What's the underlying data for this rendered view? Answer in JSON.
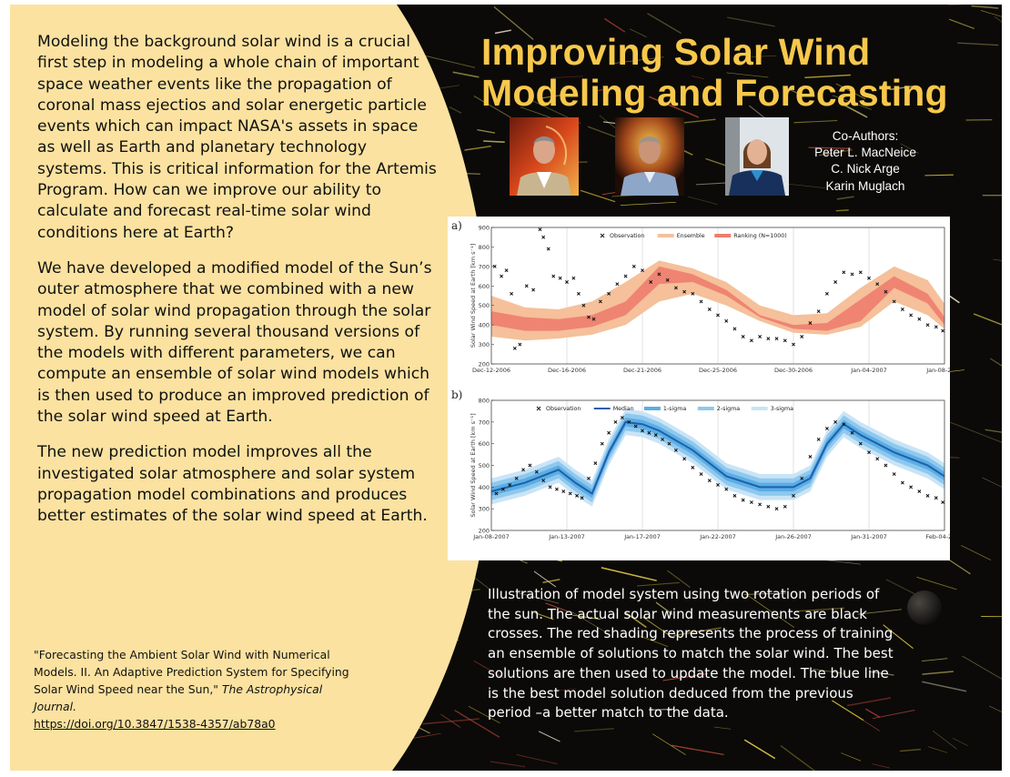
{
  "body_paragraphs": [
    "Modeling the background solar wind is a crucial first step in modeling a whole chain of important space weather events like the propagation of coronal mass ejectios and solar energetic particle events which can impact NASA's assets in space as well as Earth and planetary technology systems. This is critical information for the Artemis Program.  How can we improve our ability to calculate and forecast real-time solar wind conditions here at Earth?",
    "We have developed a modified model of the Sun’s outer atmosphere that we combined with a new model of solar wind propagation through the solar system. By running several thousand versions of the models with different parameters, we can compute an ensemble of solar wind models which is then used to produce an improved prediction of the solar wind speed at Earth.",
    "The new prediction model improves all the investigated solar atmosphere and solar system propagation model combinations and produces better estimates of the solar wind speed at Earth."
  ],
  "citation": {
    "text": "\"Forecasting the Ambient Solar Wind with Numerical Models. II. An Adaptive Prediction System for Specifying Solar Wind Speed near the Sun,\" ",
    "journal": "The Astrophysical Journal.",
    "doi": "https://doi.org/10.3847/1538-4357/ab78a0"
  },
  "title_lines": [
    "Improving Solar Wind",
    "Modeling and Forecasting"
  ],
  "coauthors": {
    "heading": "Co-Authors:",
    "names": [
      "Peter L. MacNeice",
      "C. Nick Arge",
      "Karin  Muglach"
    ]
  },
  "caption": "Illustration of model system using two rotation periods of the sun. The actual solar wind measurements are black crosses.  The red shading represents the process of training an ensemble of solutions to match the solar wind. The best solutions are then used to update the model. The blue line is the best model solution deduced from the previous period –a better match to the data.",
  "colors": {
    "title": "#f7c84b",
    "panel": "#fbe2a0",
    "ensemble": "#f5c09a",
    "ranking": "#ee7d6e",
    "median": "#1f5fae",
    "sigma1": "#5aaee3",
    "sigma2": "#8fc8ee",
    "sigma3": "#c9e4f7"
  },
  "chart_data": [
    {
      "type": "line",
      "panel_label": "a)",
      "ylabel": "Solar Wind Speed at Earth [km s⁻¹]",
      "ylim": [
        200,
        900
      ],
      "yticks": [
        200,
        300,
        400,
        500,
        600,
        700,
        800,
        900
      ],
      "xticks": [
        "Dec-12-2006",
        "Dec-16-2006",
        "Dec-21-2006",
        "Dec-25-2006",
        "Dec-30-2006",
        "Jan-04-2007",
        "Jan-08-2007"
      ],
      "legend": [
        "Observation",
        "Ensemble",
        "Ranking (N=1000)"
      ],
      "legend_position": "top",
      "grid": "vertical",
      "x_days": [
        0,
        2,
        4,
        6,
        8,
        10,
        12,
        14,
        16,
        18,
        20,
        22,
        24,
        26,
        27
      ],
      "ensemble_upper": [
        550,
        490,
        480,
        520,
        620,
        730,
        690,
        620,
        500,
        450,
        460,
        590,
        700,
        630,
        510
      ],
      "ensemble_lower": [
        340,
        320,
        330,
        350,
        400,
        520,
        560,
        500,
        420,
        360,
        350,
        390,
        520,
        450,
        380
      ],
      "ranking_upper": [
        470,
        440,
        430,
        450,
        520,
        700,
        660,
        580,
        450,
        400,
        410,
        530,
        650,
        560,
        440
      ],
      "ranking_lower": [
        400,
        370,
        370,
        390,
        450,
        610,
        620,
        550,
        440,
        380,
        370,
        420,
        590,
        510,
        400
      ],
      "observation": [
        [
          0.2,
          700
        ],
        [
          0.6,
          650
        ],
        [
          0.9,
          680
        ],
        [
          1.2,
          560
        ],
        [
          1.4,
          280
        ],
        [
          1.7,
          300
        ],
        [
          2.1,
          600
        ],
        [
          2.5,
          580
        ],
        [
          2.9,
          890
        ],
        [
          3.1,
          850
        ],
        [
          3.4,
          790
        ],
        [
          3.7,
          650
        ],
        [
          4.1,
          640
        ],
        [
          4.5,
          620
        ],
        [
          4.9,
          640
        ],
        [
          5.2,
          560
        ],
        [
          5.5,
          500
        ],
        [
          5.8,
          440
        ],
        [
          6.1,
          430
        ],
        [
          6.5,
          520
        ],
        [
          7.0,
          560
        ],
        [
          7.5,
          610
        ],
        [
          8.0,
          650
        ],
        [
          8.5,
          700
        ],
        [
          9.0,
          680
        ],
        [
          9.5,
          620
        ],
        [
          10.0,
          660
        ],
        [
          10.5,
          630
        ],
        [
          11.0,
          590
        ],
        [
          11.5,
          570
        ],
        [
          12.0,
          560
        ],
        [
          12.5,
          520
        ],
        [
          13.0,
          480
        ],
        [
          13.5,
          450
        ],
        [
          14.0,
          420
        ],
        [
          14.5,
          380
        ],
        [
          15.0,
          340
        ],
        [
          15.5,
          320
        ],
        [
          16.0,
          340
        ],
        [
          16.5,
          330
        ],
        [
          17.0,
          330
        ],
        [
          17.5,
          320
        ],
        [
          18.0,
          300
        ],
        [
          18.5,
          340
        ],
        [
          19.0,
          410
        ],
        [
          19.5,
          470
        ],
        [
          20.0,
          560
        ],
        [
          20.5,
          620
        ],
        [
          21.0,
          670
        ],
        [
          21.5,
          660
        ],
        [
          22.0,
          670
        ],
        [
          22.5,
          640
        ],
        [
          23.0,
          610
        ],
        [
          23.5,
          570
        ],
        [
          24.0,
          520
        ],
        [
          24.5,
          480
        ],
        [
          25.0,
          450
        ],
        [
          25.5,
          430
        ],
        [
          26.0,
          400
        ],
        [
          26.5,
          390
        ],
        [
          26.9,
          370
        ]
      ]
    },
    {
      "type": "line",
      "panel_label": "b)",
      "ylabel": "Solar Wind Speed at Earth [km s⁻¹]",
      "ylim": [
        200,
        800
      ],
      "yticks": [
        200,
        300,
        400,
        500,
        600,
        700,
        800
      ],
      "xticks": [
        "Jan-08-2007",
        "Jan-13-2007",
        "Jan-17-2007",
        "Jan-22-2007",
        "Jan-26-2007",
        "Jan-31-2007",
        "Feb-04-2007"
      ],
      "legend": [
        "Observation",
        "Median",
        "1-sigma",
        "2-sigma",
        "3-sigma"
      ],
      "legend_position": "top",
      "grid": "vertical",
      "x_days": [
        0,
        2,
        4,
        5,
        6,
        7,
        8,
        9,
        10,
        12,
        14,
        16,
        18,
        19,
        20,
        21,
        22,
        24,
        26,
        27
      ],
      "median": [
        380,
        420,
        480,
        420,
        370,
        560,
        700,
        690,
        660,
        570,
        450,
        400,
        400,
        440,
        600,
        690,
        640,
        560,
        500,
        450
      ],
      "observation": [
        [
          0.3,
          370
        ],
        [
          0.7,
          390
        ],
        [
          1.1,
          410
        ],
        [
          1.5,
          440
        ],
        [
          1.9,
          480
        ],
        [
          2.3,
          500
        ],
        [
          2.7,
          470
        ],
        [
          3.1,
          430
        ],
        [
          3.5,
          400
        ],
        [
          3.9,
          390
        ],
        [
          4.3,
          380
        ],
        [
          4.7,
          370
        ],
        [
          5.1,
          360
        ],
        [
          5.4,
          350
        ],
        [
          5.8,
          440
        ],
        [
          6.2,
          510
        ],
        [
          6.6,
          600
        ],
        [
          7.0,
          650
        ],
        [
          7.4,
          700
        ],
        [
          7.8,
          720
        ],
        [
          8.2,
          700
        ],
        [
          8.6,
          680
        ],
        [
          9.0,
          660
        ],
        [
          9.4,
          650
        ],
        [
          9.8,
          640
        ],
        [
          10.2,
          620
        ],
        [
          10.6,
          600
        ],
        [
          11.0,
          570
        ],
        [
          11.5,
          530
        ],
        [
          12.0,
          490
        ],
        [
          12.5,
          460
        ],
        [
          13.0,
          430
        ],
        [
          13.5,
          410
        ],
        [
          14.0,
          390
        ],
        [
          14.5,
          360
        ],
        [
          15.0,
          340
        ],
        [
          15.5,
          330
        ],
        [
          16.0,
          320
        ],
        [
          16.5,
          310
        ],
        [
          17.0,
          300
        ],
        [
          17.5,
          310
        ],
        [
          18.0,
          360
        ],
        [
          18.5,
          440
        ],
        [
          19.0,
          540
        ],
        [
          19.5,
          620
        ],
        [
          20.0,
          670
        ],
        [
          20.5,
          700
        ],
        [
          21.0,
          690
        ],
        [
          21.5,
          650
        ],
        [
          22.0,
          600
        ],
        [
          22.5,
          560
        ],
        [
          23.0,
          530
        ],
        [
          23.5,
          500
        ],
        [
          24.0,
          460
        ],
        [
          24.5,
          420
        ],
        [
          25.0,
          400
        ],
        [
          25.5,
          380
        ],
        [
          26.0,
          360
        ],
        [
          26.5,
          350
        ],
        [
          26.9,
          330
        ]
      ]
    }
  ]
}
